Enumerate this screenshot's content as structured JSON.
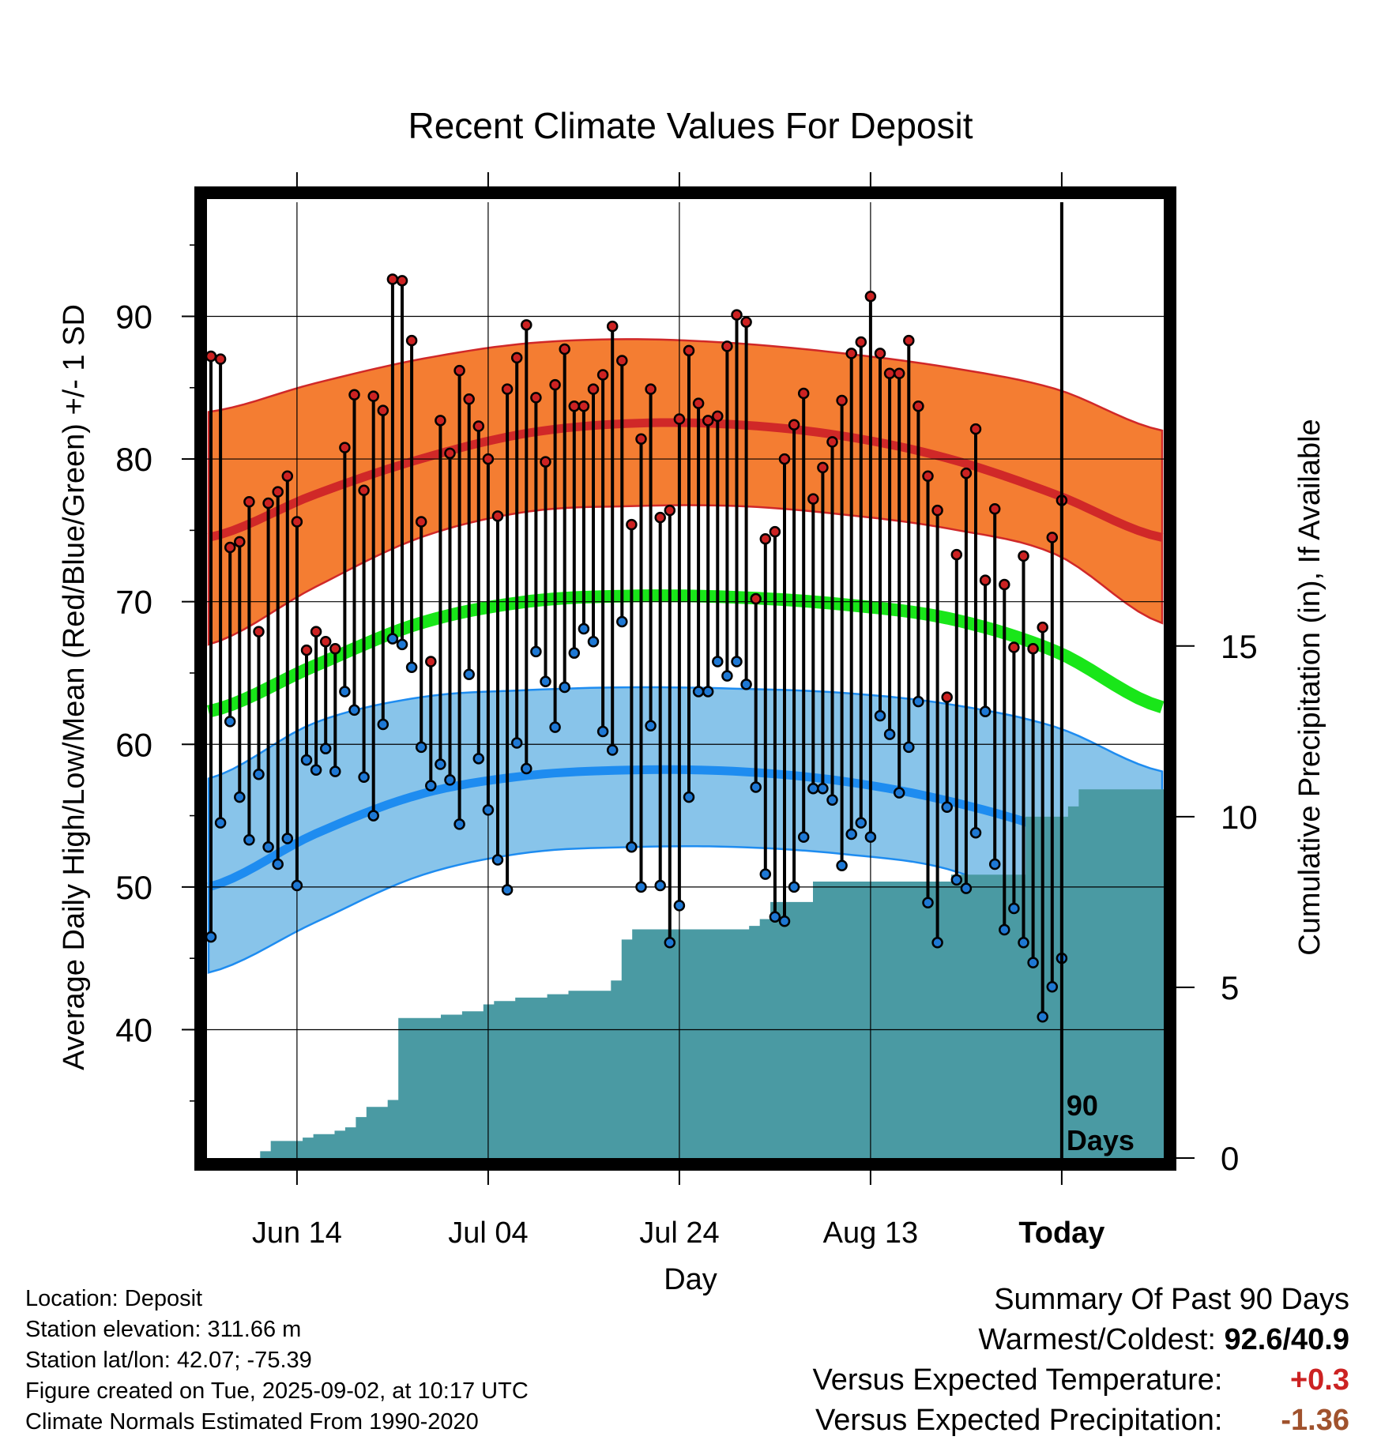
{
  "chart_data": {
    "type": "line",
    "title": "Recent Climate Values For Deposit",
    "xlabel": "Day",
    "ylabel": "Average Daily High/Low/Mean (Red/Blue/Green) +/- 1 SD",
    "y2label": "Cumulative Precipitation (in), If Available",
    "ylim": [
      31,
      98
    ],
    "y2lim": [
      0,
      28
    ],
    "yticks": [
      40,
      50,
      60,
      70,
      80,
      90
    ],
    "y2ticks": [
      0,
      5,
      10,
      15
    ],
    "x_tick_labels": [
      "Jun 14",
      "Jul 04",
      "Jul 24",
      "Aug 13",
      "Today"
    ],
    "today_marker_label": [
      "90",
      "Days"
    ],
    "grid": true,
    "normals": {
      "high_mean": [
        74.5,
        77.5,
        80.0,
        81.8,
        82.5,
        82.4,
        81.6,
        80.0,
        77.5,
        74.5
      ],
      "high_upper": [
        83.3,
        85.3,
        87.0,
        88.1,
        88.4,
        88.1,
        87.4,
        86.4,
        84.9,
        82.0
      ],
      "high_lower": [
        67.0,
        71.0,
        74.5,
        76.3,
        76.7,
        76.7,
        76.1,
        75.1,
        73.3,
        68.5
      ],
      "mean_mean": [
        62.3,
        65.5,
        68.5,
        70.0,
        70.4,
        70.3,
        69.8,
        68.8,
        66.5,
        62.6
      ],
      "low_mean": [
        50.0,
        53.7,
        56.5,
        57.8,
        58.2,
        58.1,
        57.4,
        56.0,
        53.8,
        50.3
      ],
      "low_upper": [
        57.6,
        61.5,
        63.3,
        63.8,
        64.0,
        63.9,
        63.6,
        62.8,
        61.2,
        58.1
      ],
      "low_lower": [
        44.0,
        47.5,
        50.8,
        52.4,
        52.8,
        52.8,
        52.3,
        51.2,
        48.0,
        43.0
      ]
    },
    "series": [
      {
        "name": "High",
        "values": [
          87.2,
          87.0,
          73.8,
          74.2,
          77.0,
          67.9,
          76.9,
          77.7,
          78.8,
          75.6,
          66.6,
          67.9,
          67.2,
          66.7,
          80.8,
          84.5,
          77.8,
          84.4,
          83.4,
          92.6,
          92.5,
          88.3,
          75.6,
          65.8,
          82.7,
          80.4,
          86.2,
          84.2,
          82.3,
          80.0,
          76.0,
          84.9,
          87.1,
          89.4,
          84.3,
          79.8,
          85.2,
          87.7,
          83.7,
          83.7,
          84.9,
          85.9,
          89.3,
          86.9,
          75.4,
          81.4,
          84.9,
          75.9,
          76.4,
          82.8,
          87.6,
          83.9,
          82.7,
          83.0,
          87.9,
          90.1,
          89.6,
          70.2,
          74.4,
          74.9,
          80.0,
          82.4,
          84.6,
          77.2,
          79.4,
          81.2,
          84.1,
          87.4,
          88.2,
          91.4,
          87.4,
          86.0,
          86.0,
          88.3,
          83.7,
          78.8,
          76.4,
          63.3,
          73.3,
          79.0,
          82.1,
          71.5,
          76.5,
          71.2,
          66.8,
          73.2,
          66.7,
          68.2,
          74.5,
          77.1
        ],
        "color": "#cc2222"
      },
      {
        "name": "Low",
        "values": [
          46.5,
          54.5,
          61.6,
          56.3,
          53.3,
          57.9,
          52.8,
          51.6,
          53.4,
          50.1,
          58.9,
          58.2,
          59.7,
          58.1,
          63.7,
          62.4,
          57.7,
          55.0,
          61.4,
          67.4,
          67.0,
          65.4,
          59.8,
          57.1,
          58.6,
          57.5,
          54.4,
          64.9,
          59.0,
          55.4,
          51.9,
          49.8,
          60.1,
          58.3,
          66.5,
          64.4,
          61.2,
          64.0,
          66.4,
          68.1,
          67.2,
          60.9,
          59.6,
          68.6,
          52.8,
          50.0,
          61.3,
          50.1,
          46.1,
          48.7,
          56.3,
          63.7,
          63.7,
          65.8,
          64.8,
          65.8,
          64.2,
          57.0,
          50.9,
          47.9,
          47.6,
          50.0,
          53.5,
          56.9,
          56.9,
          56.1,
          51.5,
          53.7,
          54.5,
          53.5,
          62.0,
          60.7,
          56.6,
          59.8,
          63.0,
          48.9,
          46.1,
          55.6,
          50.5,
          49.9,
          53.8,
          62.3,
          51.6,
          47.0,
          48.5,
          46.1,
          44.7,
          40.9,
          43.0,
          45.0
        ],
        "color": "#1e78d4"
      },
      {
        "name": "Cumulative Precipitation",
        "values": [
          0,
          0,
          0,
          0,
          0,
          0.2,
          0.5,
          0.5,
          0.5,
          0.6,
          0.7,
          0.7,
          0.8,
          0.9,
          1.2,
          1.5,
          1.5,
          1.7,
          4.1,
          4.1,
          4.1,
          4.1,
          4.2,
          4.2,
          4.3,
          4.3,
          4.5,
          4.6,
          4.6,
          4.7,
          4.7,
          4.7,
          4.8,
          4.8,
          4.9,
          4.9,
          4.9,
          4.9,
          5.2,
          6.4,
          6.7,
          6.7,
          6.7,
          6.7,
          6.7,
          6.7,
          6.7,
          6.7,
          6.7,
          6.7,
          6.7,
          6.8,
          7.0,
          7.5,
          7.5,
          7.5,
          7.5,
          8.1,
          8.1,
          8.1,
          8.1,
          8.1,
          8.1,
          8.1,
          8.1,
          8.1,
          8.1,
          8.1,
          8.1,
          8.1,
          8.3,
          8.3,
          8.3,
          8.3,
          8.3,
          8.3,
          8.3,
          10.0,
          10.0,
          10.0,
          10.0,
          10.3,
          10.8,
          10.8,
          10.8,
          10.8,
          10.8,
          10.8,
          10.8,
          10.8
        ],
        "color": "#4a9aa3"
      }
    ]
  },
  "meta": {
    "location": "Location: Deposit",
    "elevation": "Station elevation: 311.66 m",
    "latlon": "Station lat/lon: 42.07; -75.39",
    "created": "Figure created on Tue, 2025-09-02, at 10:17 UTC",
    "normals": "Climate Normals Estimated From 1990-2020"
  },
  "summary": {
    "title": "Summary Of Past 90 Days",
    "warmest_label": "Warmest/Coldest:",
    "warmest_value": "92.6/40.9",
    "temp_label": "Versus Expected Temperature:",
    "temp_value": "+0.3",
    "precip_label": "Versus Expected Precipitation:",
    "precip_value": "-1.36"
  },
  "colors": {
    "high_band": "#f47d32",
    "high_line": "#d02828",
    "mean_line": "#19e619",
    "low_band": "#88c4ea",
    "low_line": "#1e8cf0",
    "precip": "#4a9aa3"
  }
}
